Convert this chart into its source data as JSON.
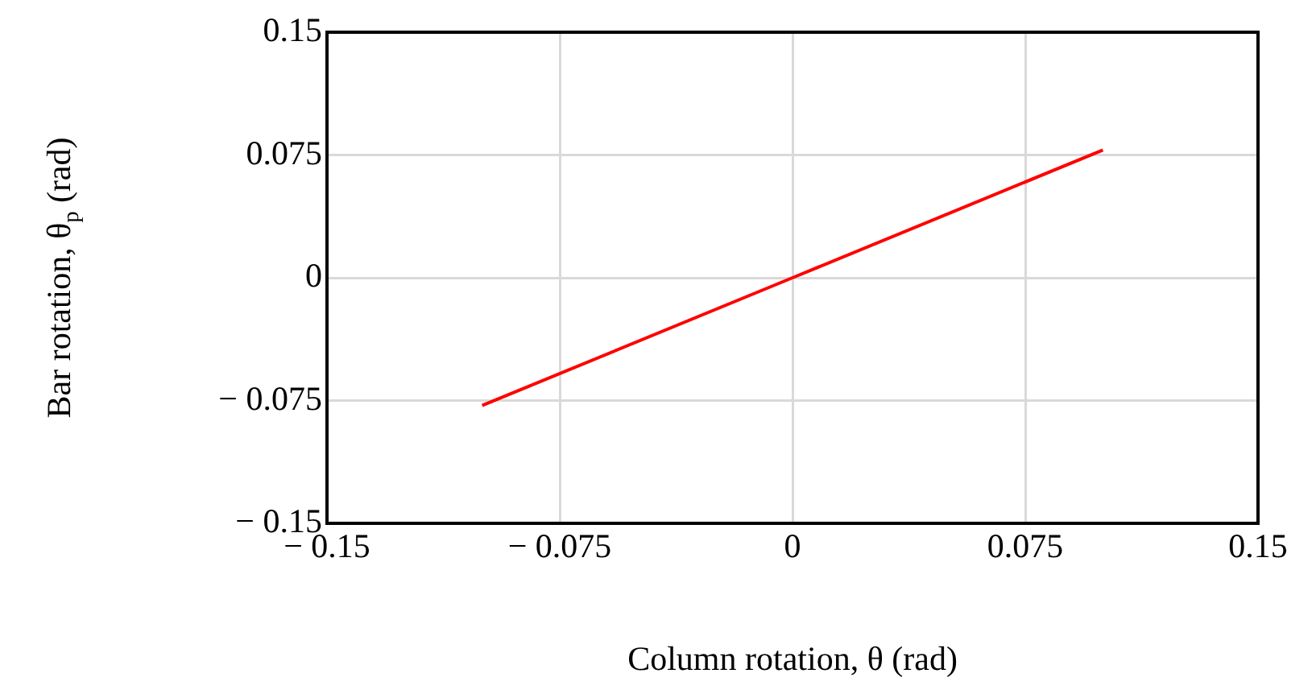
{
  "chart_data": {
    "type": "line",
    "xlabel": "Column rotation, θ (rad)",
    "ylabel": "Bar rotation, θ$_{p}$ (rad)",
    "series": [
      {
        "color": "#ff0000",
        "x": [
          -0.1,
          0,
          0.1
        ],
        "values": [
          -0.078,
          0,
          0.078
        ]
      }
    ],
    "xlim": [
      -0.15,
      0.15
    ],
    "ylim": [
      -0.15,
      0.15
    ],
    "xticks": [
      {
        "value": -0.15,
        "label": "− 0.15"
      },
      {
        "value": -0.075,
        "label": "− 0.075"
      },
      0,
      0.075,
      0.15
    ],
    "yticks": [
      {
        "value": -0.15,
        "label": "− 0.15"
      },
      {
        "value": -0.075,
        "label": "− 0.075"
      },
      0,
      0.075,
      0.15
    ],
    "grid": true,
    "legend": false,
    "marker": "none",
    "line_style": "solid"
  }
}
